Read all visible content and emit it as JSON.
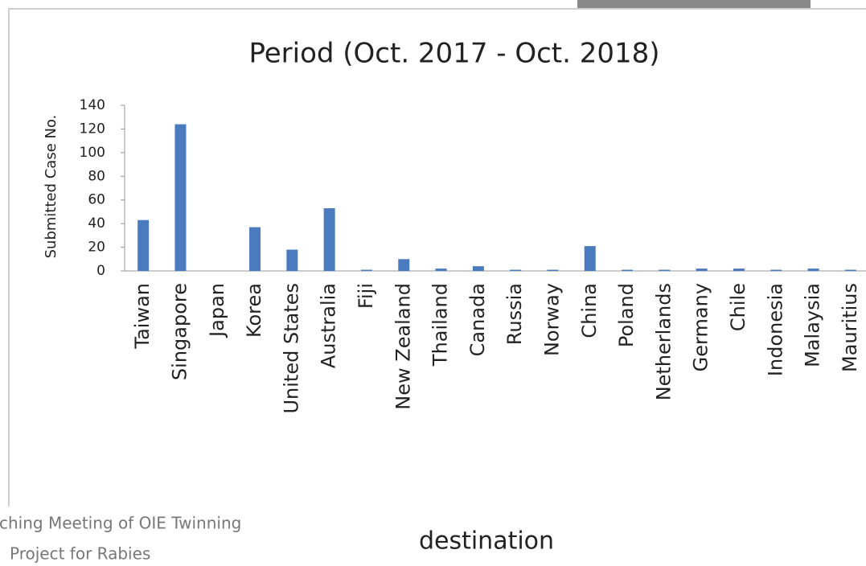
{
  "chart_data": {
    "type": "bar",
    "title": "Period (Oct. 2017 - Oct. 2018)",
    "x_label": "destination",
    "y_label": "Submitted Case No.",
    "categories": [
      "Taiwan",
      "Singapore",
      "Japan",
      "Korea",
      "United States",
      "Australia",
      "Fiji",
      "New Zealand",
      "Thailand",
      "Canada",
      "Russia",
      "Norway",
      "China",
      "Poland",
      "Netherlands",
      "Germany",
      "Chile",
      "Indonesia",
      "Malaysia",
      "Mauritius"
    ],
    "values": [
      43,
      124,
      0,
      37,
      18,
      53,
      1,
      10,
      2,
      4,
      1,
      1,
      21,
      1,
      1,
      2,
      2,
      1,
      2,
      1
    ],
    "color": "#4a7bbf",
    "ylim": [
      0,
      140
    ],
    "yticks": [
      0,
      20,
      40,
      60,
      80,
      100,
      120,
      140
    ],
    "grid": false
  },
  "footer": {
    "lines": [
      "ching Meeting of OIE Twinning",
      "Project for Rabies"
    ]
  }
}
